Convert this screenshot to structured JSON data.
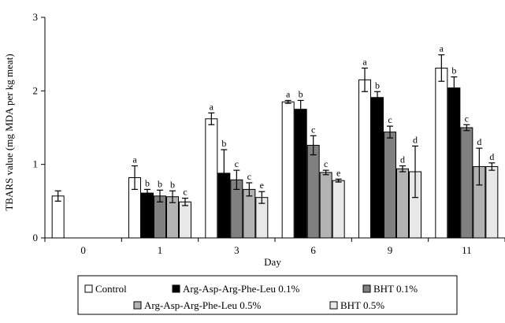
{
  "chart_data": {
    "type": "bar",
    "xlabel": "Day",
    "ylabel": "TBARS value  (mg MDA per kg  meat)",
    "ylim": [
      0,
      3
    ],
    "yticks": [
      "0",
      "1",
      "2",
      "3"
    ],
    "categories": [
      "0",
      "1",
      "3",
      "6",
      "9",
      "11"
    ],
    "grid": false,
    "legend_position": "bottom",
    "series": [
      {
        "name": "Control",
        "color": "#ffffff",
        "values": [
          0.57,
          0.82,
          1.62,
          1.85,
          2.15,
          2.31
        ],
        "errors": [
          0.07,
          0.16,
          0.08,
          0.02,
          0.16,
          0.18
        ],
        "sig": [
          "",
          "a",
          "a",
          "a",
          "a",
          "a"
        ]
      },
      {
        "name": "Arg-Asp-Arg-Phe-Leu 0.1%",
        "color": "#000000",
        "values": [
          0.0,
          0.61,
          0.88,
          1.75,
          1.91,
          2.04
        ],
        "errors": [
          0.0,
          0.05,
          0.32,
          0.12,
          0.08,
          0.15
        ],
        "sig": [
          "",
          "b",
          "b",
          "b",
          "b",
          "b"
        ]
      },
      {
        "name": "BHT 0.1%",
        "color": "#808080",
        "values": [
          0.0,
          0.57,
          0.79,
          1.26,
          1.44,
          1.5
        ],
        "errors": [
          0.0,
          0.08,
          0.13,
          0.13,
          0.08,
          0.04
        ],
        "sig": [
          "",
          "b",
          "c",
          "c",
          "c",
          "c"
        ]
      },
      {
        "name": "Arg-Asp-Arg-Phe-Leu 0.5%",
        "color": "#b3b3b3",
        "values": [
          0.0,
          0.56,
          0.66,
          0.89,
          0.94,
          0.97
        ],
        "errors": [
          0.0,
          0.08,
          0.09,
          0.03,
          0.04,
          0.25
        ],
        "sig": [
          "",
          "b",
          "c",
          "c",
          "d",
          "d"
        ]
      },
      {
        "name": "BHT 0.5%",
        "color": "#e8e8e8",
        "values": [
          0.0,
          0.49,
          0.55,
          0.78,
          0.9,
          0.97
        ],
        "errors": [
          0.0,
          0.05,
          0.08,
          0.02,
          0.35,
          0.05
        ],
        "sig": [
          "",
          "c",
          "e",
          "e",
          "d",
          "d"
        ]
      }
    ]
  }
}
